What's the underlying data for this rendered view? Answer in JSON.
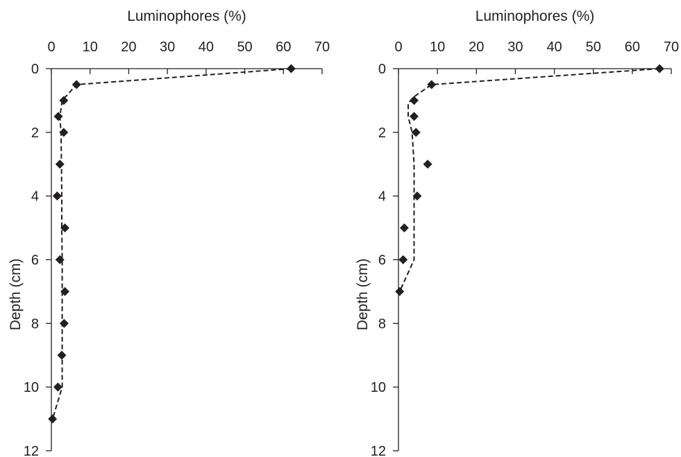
{
  "chart_data": [
    {
      "type": "scatter",
      "xlabel": "Luminophores (%)",
      "ylabel": "Depth (cm)",
      "xlim": [
        0,
        70
      ],
      "ylim": [
        0,
        12
      ],
      "y_inverted": true,
      "x_axis_position": "top",
      "x_ticks": [
        "0",
        "10",
        "20",
        "30",
        "40",
        "50",
        "60",
        "70"
      ],
      "y_ticks": [
        "0",
        "2",
        "4",
        "6",
        "8",
        "10",
        "12"
      ],
      "grid": false,
      "points": [
        {
          "x": 62,
          "y": 0
        },
        {
          "x": 6.5,
          "y": 0.5
        },
        {
          "x": 3.2,
          "y": 1
        },
        {
          "x": 1.8,
          "y": 1.5
        },
        {
          "x": 3.2,
          "y": 2
        },
        {
          "x": 2.2,
          "y": 3
        },
        {
          "x": 1.5,
          "y": 4
        },
        {
          "x": 3.5,
          "y": 5
        },
        {
          "x": 2.2,
          "y": 6
        },
        {
          "x": 3.5,
          "y": 7
        },
        {
          "x": 3.3,
          "y": 8
        },
        {
          "x": 2.7,
          "y": 9
        },
        {
          "x": 1.7,
          "y": 10
        },
        {
          "x": 0.3,
          "y": 11
        }
      ],
      "fit_line": [
        {
          "x": 62,
          "y": 0
        },
        {
          "x": 6.5,
          "y": 0.5
        },
        {
          "x": 2.8,
          "y": 1
        },
        {
          "x": 2.2,
          "y": 1.5
        },
        {
          "x": 2.5,
          "y": 2
        },
        {
          "x": 2.6,
          "y": 3
        },
        {
          "x": 2.7,
          "y": 4
        },
        {
          "x": 2.7,
          "y": 5
        },
        {
          "x": 2.8,
          "y": 6
        },
        {
          "x": 2.8,
          "y": 7
        },
        {
          "x": 2.8,
          "y": 8
        },
        {
          "x": 2.8,
          "y": 9
        },
        {
          "x": 2.8,
          "y": 10
        },
        {
          "x": 0.3,
          "y": 11
        }
      ]
    },
    {
      "type": "scatter",
      "xlabel": "Luminophores (%)",
      "ylabel": "Depth (cm)",
      "xlim": [
        0,
        70
      ],
      "ylim": [
        0,
        12
      ],
      "y_inverted": true,
      "x_axis_position": "top",
      "x_ticks": [
        "0",
        "10",
        "20",
        "30",
        "40",
        "50",
        "60",
        "70"
      ],
      "y_ticks": [
        "0",
        "2",
        "4",
        "6",
        "8",
        "10",
        "12"
      ],
      "grid": false,
      "points": [
        {
          "x": 67,
          "y": 0
        },
        {
          "x": 8.5,
          "y": 0.5
        },
        {
          "x": 4,
          "y": 1
        },
        {
          "x": 4,
          "y": 1.5
        },
        {
          "x": 4.5,
          "y": 2
        },
        {
          "x": 7.5,
          "y": 3
        },
        {
          "x": 4.8,
          "y": 4
        },
        {
          "x": 1.5,
          "y": 5
        },
        {
          "x": 1.2,
          "y": 6
        },
        {
          "x": 0.3,
          "y": 7
        }
      ],
      "fit_line": [
        {
          "x": 67,
          "y": 0
        },
        {
          "x": 8.5,
          "y": 0.5
        },
        {
          "x": 3.8,
          "y": 0.9
        },
        {
          "x": 2.5,
          "y": 1.1
        },
        {
          "x": 2.5,
          "y": 1.5
        },
        {
          "x": 3.5,
          "y": 2
        },
        {
          "x": 4,
          "y": 3
        },
        {
          "x": 4,
          "y": 4
        },
        {
          "x": 4,
          "y": 5
        },
        {
          "x": 4,
          "y": 6
        },
        {
          "x": 0.3,
          "y": 7
        }
      ]
    }
  ]
}
